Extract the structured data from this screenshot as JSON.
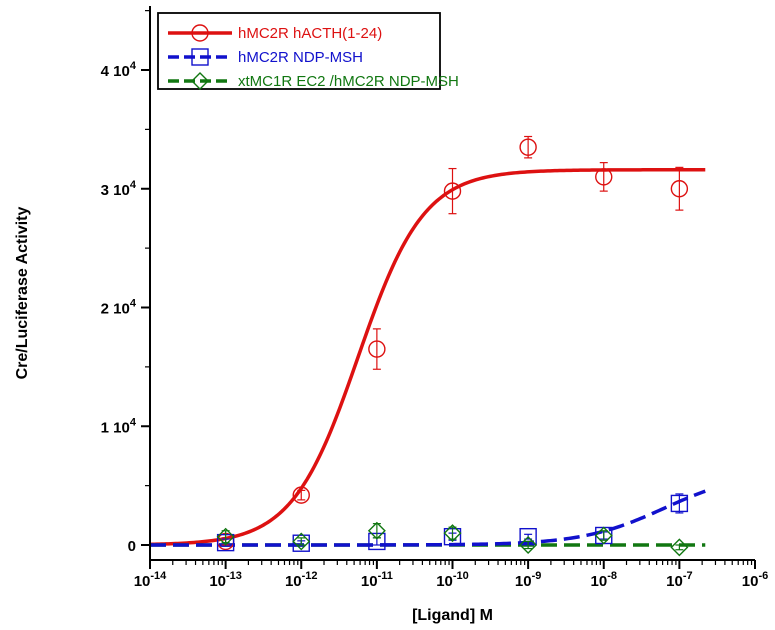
{
  "chart_data": {
    "type": "scatter",
    "xlabel": "[Ligand] M",
    "ylabel": "Cre/Luciferase Activity",
    "x_scale": "log",
    "xlim": [
      1e-14,
      1e-06
    ],
    "ylim": [
      -800,
      45000
    ],
    "x_ticks": [
      {
        "value": 1e-14,
        "base": "10",
        "exp": "-14"
      },
      {
        "value": 1e-13,
        "base": "10",
        "exp": "-13"
      },
      {
        "value": 1e-12,
        "base": "10",
        "exp": "-12"
      },
      {
        "value": 1e-11,
        "base": "10",
        "exp": "-11"
      },
      {
        "value": 1e-10,
        "base": "10",
        "exp": "-10"
      },
      {
        "value": 1e-09,
        "base": "10",
        "exp": "-9"
      },
      {
        "value": 1e-08,
        "base": "10",
        "exp": "-8"
      },
      {
        "value": 1e-07,
        "base": "10",
        "exp": "-7"
      },
      {
        "value": 1e-06,
        "base": "10",
        "exp": "-6"
      }
    ],
    "y_ticks": [
      {
        "value": 0,
        "mant": "0",
        "exp": ""
      },
      {
        "value": 10000,
        "mant": "1 10",
        "exp": "4"
      },
      {
        "value": 20000,
        "mant": "2 10",
        "exp": "4"
      },
      {
        "value": 30000,
        "mant": "3 10",
        "exp": "4"
      },
      {
        "value": 40000,
        "mant": "4 10",
        "exp": "4"
      }
    ],
    "legend_position": "top-left",
    "series": [
      {
        "name": "hMC2R  hACTH(1-24)",
        "color": "#dd1111",
        "marker": "circle",
        "line": "solid",
        "x": [
          1e-13,
          1e-12,
          1e-11,
          1e-10,
          1e-09,
          1e-08,
          1e-07
        ],
        "y": [
          300,
          4200,
          16500,
          29800,
          33500,
          31000,
          30000
        ],
        "err": [
          300,
          400,
          1700,
          1900,
          900,
          1200,
          1800
        ],
        "fit": {
          "bottom": 0,
          "top": 31600,
          "log_ec50": -11.25,
          "hill": 1.0,
          "x_range": [
            1e-14,
            2.2e-07
          ]
        }
      },
      {
        "name": "hMC2R  NDP-MSH",
        "color": "#1111cc",
        "marker": "square",
        "line": "dashed",
        "x": [
          1e-13,
          1e-12,
          1e-11,
          1e-10,
          1e-09,
          1e-08,
          1e-07
        ],
        "y": [
          200,
          150,
          300,
          700,
          700,
          800,
          3500
        ],
        "err": [
          300,
          200,
          300,
          300,
          200,
          300,
          800
        ],
        "fit": {
          "bottom": 0,
          "top": 6200,
          "log_ec50": -7.2,
          "hill": 0.8,
          "x_range": [
            1e-14,
            2.2e-07
          ]
        }
      },
      {
        "name": "xtMC1R EC2 /hMC2R  NDP-MSH",
        "color": "#117711",
        "marker": "diamond",
        "line": "dashed",
        "x": [
          1e-13,
          1e-12,
          1e-11,
          1e-10,
          1e-09,
          1e-08,
          1e-07
        ],
        "y": [
          700,
          300,
          1200,
          1000,
          0,
          800,
          -200
        ],
        "err": [
          500,
          300,
          600,
          500,
          300,
          400,
          200
        ],
        "fit": {
          "bottom": 0,
          "top": 0,
          "log_ec50": -9,
          "hill": 1.0,
          "x_range": [
            1e-14,
            2.2e-07
          ]
        }
      }
    ]
  }
}
